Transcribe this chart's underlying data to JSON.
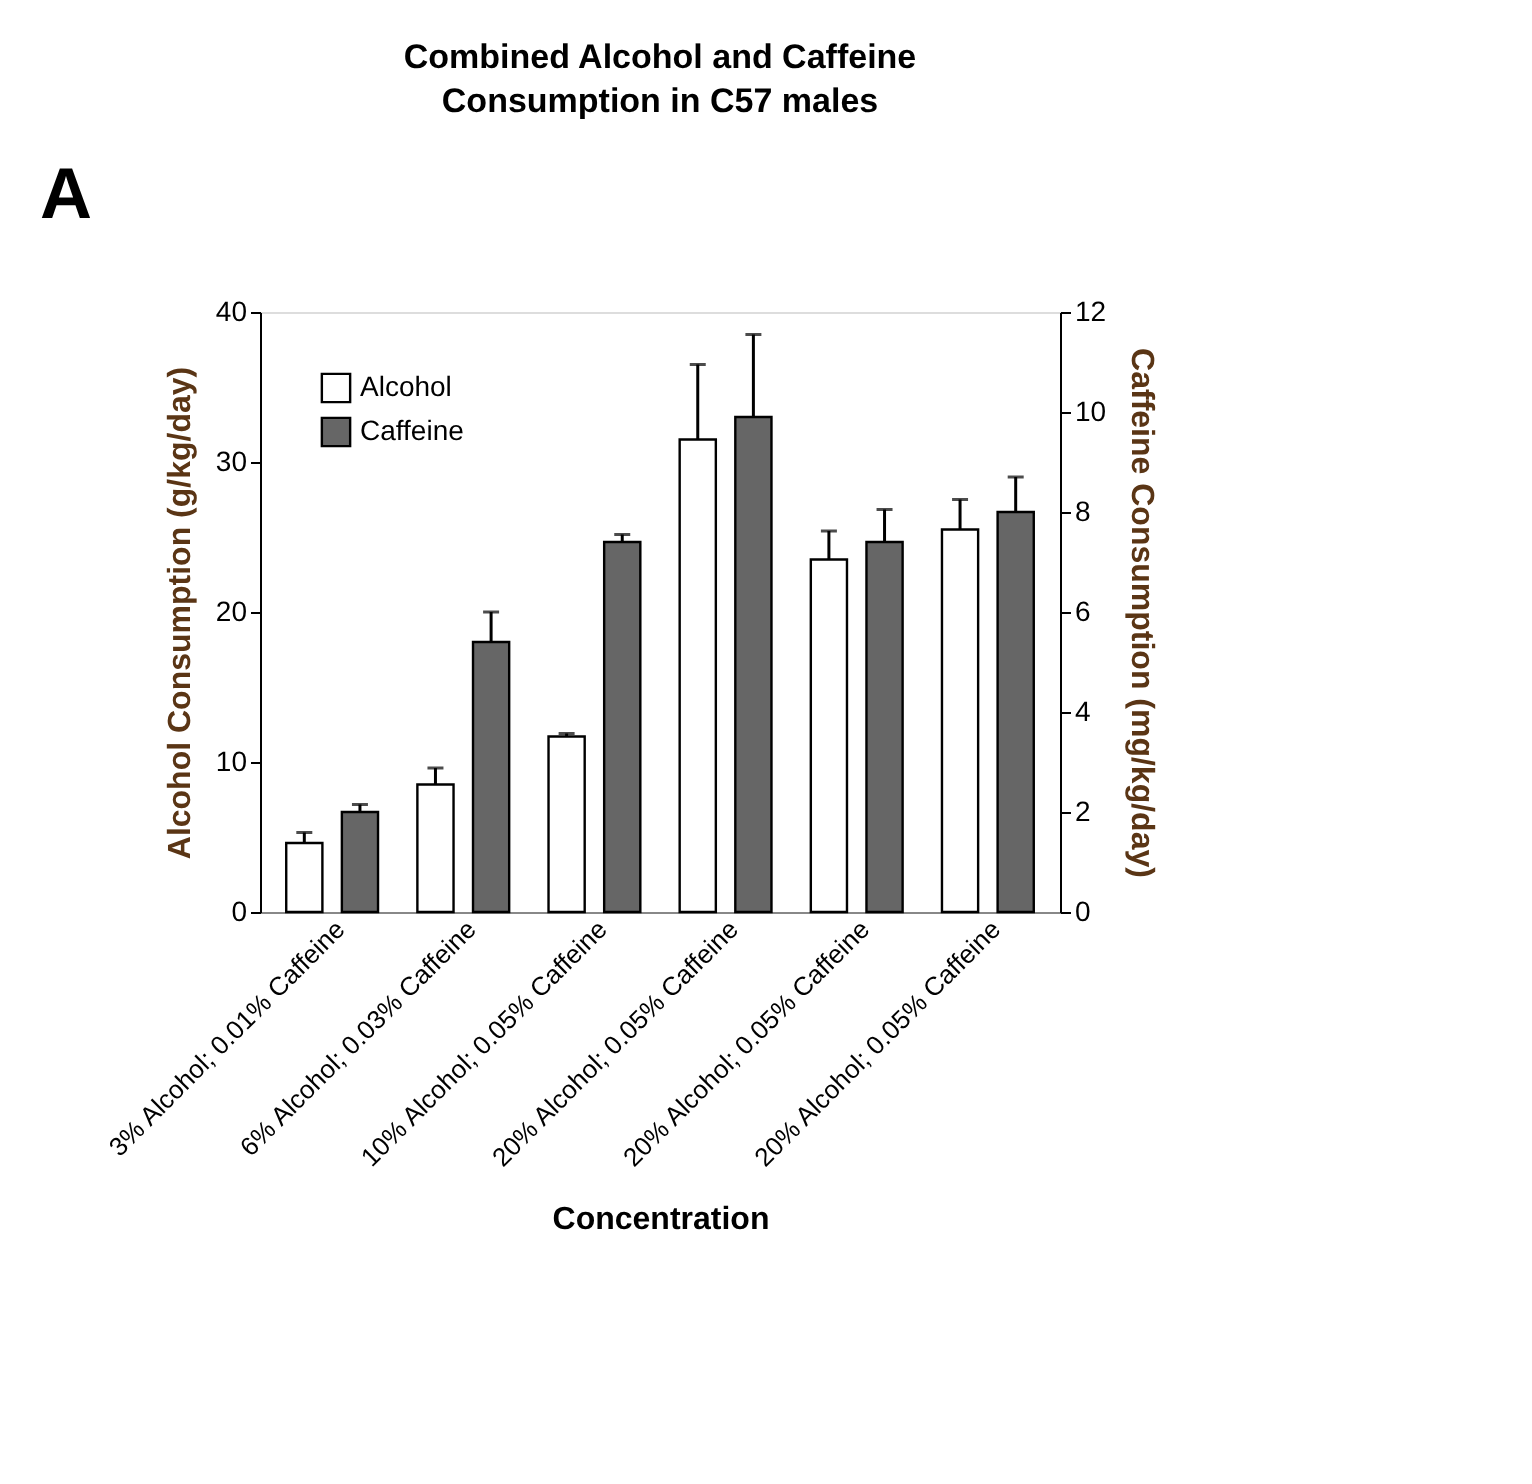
{
  "chart_data": {
    "type": "bar",
    "title": "Combined Alcohol and Caffeine Consumption in C57 males",
    "xlabel": "Concentration",
    "ylabel": "Alcohol Consumption (g/kg/day)",
    "y2label": "Caffeine Consumption (mg/kg/day)",
    "annotations": [
      "A"
    ],
    "categories": [
      "3% Alcohol; 0.01% Caffeine",
      "6% Alcohol; 0.03% Caffeine",
      "10% Alcohol; 0.05% Caffeine",
      "20% Alcohol; 0.05% Caffeine",
      "20% Alcohol; 0.05% Caffeine",
      "20% Alcohol; 0.05% Caffeine"
    ],
    "series": [
      {
        "name": "Alcohol",
        "color": "#ffffff",
        "values": [
          4.6,
          8.5,
          11.7,
          31.5,
          23.5,
          25.5
        ],
        "errors": [
          [
            4.6,
            5.3
          ],
          [
            8.5,
            9.6
          ],
          [
            11.7,
            11.9
          ],
          [
            31.5,
            36.5
          ],
          [
            23.5,
            25.4
          ],
          [
            25.5,
            27.5
          ]
        ]
      },
      {
        "name": "Caffeine",
        "color": "#666666",
        "axis": "y2",
        "values": [
          2.0,
          5.4,
          7.4,
          9.9,
          7.4,
          8.0
        ],
        "errors": [
          [
            2.0,
            2.15
          ],
          [
            5.4,
            6.0
          ],
          [
            7.4,
            7.55
          ],
          [
            9.9,
            11.55
          ],
          [
            7.4,
            8.05
          ],
          [
            8.0,
            8.7
          ]
        ]
      }
    ],
    "ylim": [
      0,
      40
    ],
    "yticks": [
      0,
      10,
      20,
      30,
      40
    ],
    "y2lim": [
      0,
      12
    ],
    "y2ticks": [
      0,
      2,
      4,
      6,
      8,
      10,
      12
    ],
    "grid": false,
    "legend": "top left"
  }
}
